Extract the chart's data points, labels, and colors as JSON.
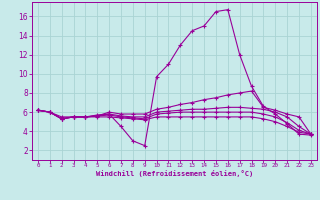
{
  "background_color": "#c8eaea",
  "grid_color": "#aad4d4",
  "line_color": "#990099",
  "xlabel": "Windchill (Refroidissement éolien,°C)",
  "xlim": [
    -0.5,
    23.5
  ],
  "ylim": [
    1.0,
    17.5
  ],
  "yticks": [
    2,
    4,
    6,
    8,
    10,
    12,
    14,
    16
  ],
  "xticks": [
    0,
    1,
    2,
    3,
    4,
    5,
    6,
    7,
    8,
    9,
    10,
    11,
    12,
    13,
    14,
    15,
    16,
    17,
    18,
    19,
    20,
    21,
    22,
    23
  ],
  "lines": [
    {
      "x": [
        0,
        1,
        2,
        3,
        4,
        5,
        6,
        7,
        8,
        9,
        10,
        11,
        12,
        13,
        14,
        15,
        16,
        17,
        18,
        19,
        20,
        21,
        22,
        23
      ],
      "y": [
        6.2,
        6.0,
        5.5,
        5.5,
        5.5,
        5.7,
        5.8,
        4.5,
        3.0,
        2.5,
        9.7,
        11.0,
        13.0,
        14.5,
        15.0,
        16.5,
        16.7,
        12.0,
        8.7,
        6.6,
        5.8,
        4.8,
        3.7,
        3.6
      ]
    },
    {
      "x": [
        0,
        1,
        2,
        3,
        4,
        5,
        6,
        7,
        8,
        9,
        10,
        11,
        12,
        13,
        14,
        15,
        16,
        17,
        18,
        19,
        20,
        21,
        22,
        23
      ],
      "y": [
        6.2,
        6.0,
        5.3,
        5.5,
        5.5,
        5.6,
        6.0,
        5.8,
        5.8,
        5.8,
        6.3,
        6.5,
        6.8,
        7.0,
        7.3,
        7.5,
        7.8,
        8.0,
        8.2,
        6.5,
        6.2,
        5.8,
        5.5,
        3.7
      ]
    },
    {
      "x": [
        0,
        1,
        2,
        3,
        4,
        5,
        6,
        7,
        8,
        9,
        10,
        11,
        12,
        13,
        14,
        15,
        16,
        17,
        18,
        19,
        20,
        21,
        22,
        23
      ],
      "y": [
        6.2,
        6.0,
        5.3,
        5.5,
        5.5,
        5.6,
        5.8,
        5.6,
        5.5,
        5.5,
        6.0,
        6.1,
        6.2,
        6.3,
        6.3,
        6.4,
        6.5,
        6.5,
        6.4,
        6.3,
        6.0,
        5.5,
        4.5,
        3.7
      ]
    },
    {
      "x": [
        0,
        1,
        2,
        3,
        4,
        5,
        6,
        7,
        8,
        9,
        10,
        11,
        12,
        13,
        14,
        15,
        16,
        17,
        18,
        19,
        20,
        21,
        22,
        23
      ],
      "y": [
        6.2,
        6.0,
        5.3,
        5.5,
        5.5,
        5.6,
        5.7,
        5.5,
        5.4,
        5.3,
        5.8,
        5.9,
        6.0,
        6.0,
        6.0,
        6.0,
        6.0,
        6.0,
        6.0,
        5.8,
        5.5,
        4.9,
        4.1,
        3.7
      ]
    },
    {
      "x": [
        0,
        1,
        2,
        3,
        4,
        5,
        6,
        7,
        8,
        9,
        10,
        11,
        12,
        13,
        14,
        15,
        16,
        17,
        18,
        19,
        20,
        21,
        22,
        23
      ],
      "y": [
        6.2,
        6.0,
        5.3,
        5.5,
        5.5,
        5.5,
        5.5,
        5.4,
        5.3,
        5.2,
        5.5,
        5.5,
        5.5,
        5.5,
        5.5,
        5.5,
        5.5,
        5.5,
        5.5,
        5.3,
        5.0,
        4.5,
        3.9,
        3.7
      ]
    }
  ]
}
